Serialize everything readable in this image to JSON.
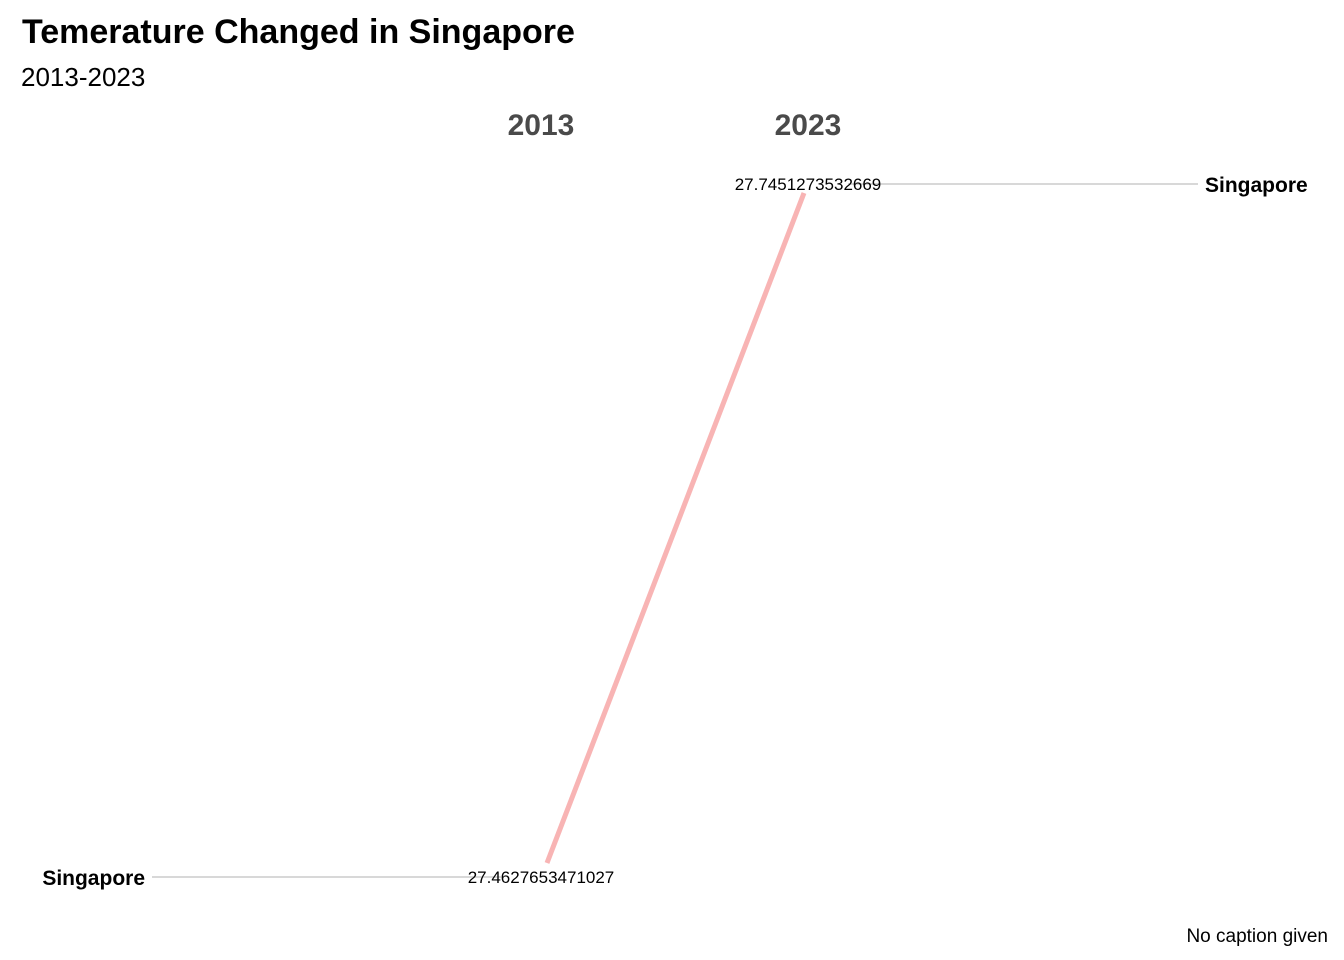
{
  "chart_data": {
    "type": "line",
    "title": "Temerature Changed in Singapore",
    "subtitle": "2013-2023",
    "caption": "No caption given",
    "x": [
      "2013",
      "2023"
    ],
    "series": [
      {
        "name": "Singapore",
        "values": [
          27.4627653471027,
          27.7451273532669
        ],
        "labels": [
          "27.4627653471027",
          "27.7451273532669"
        ],
        "color": "#f8b4b4"
      }
    ],
    "ylim": [
      27.4627653471027,
      27.7451273532669
    ],
    "grid": false,
    "legend": "none",
    "guide_color": "#cccccc",
    "header_color": "#4a4a4a"
  }
}
